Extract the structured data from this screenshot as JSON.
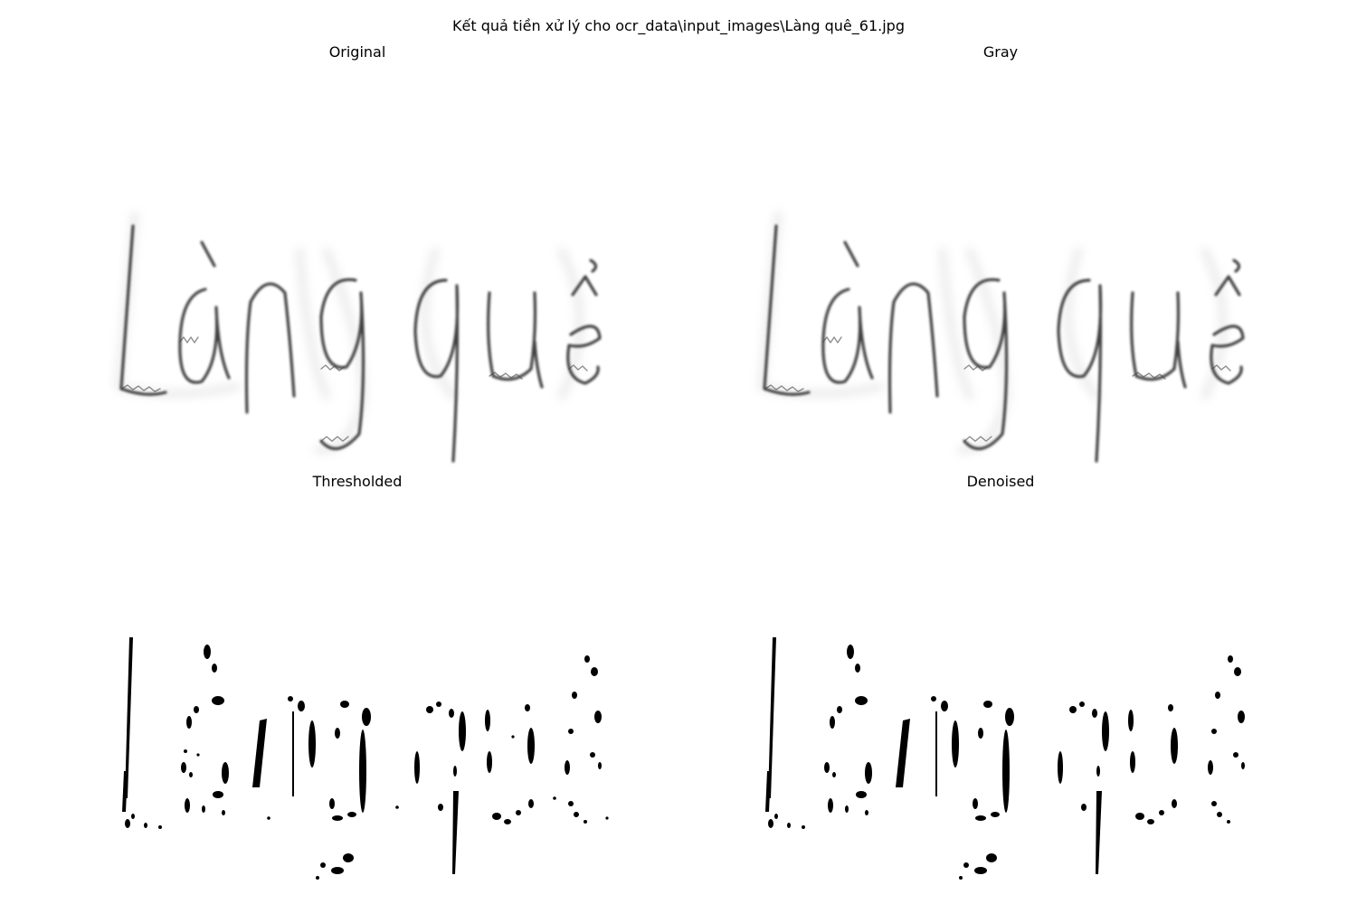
{
  "figure": {
    "title": "Kết quả tiền xử lý cho ocr_data\\input_images\\Làng quê_61.jpg"
  },
  "panels": {
    "original": {
      "title": "Original"
    },
    "gray": {
      "title": "Gray"
    },
    "thresholded": {
      "title": "Thresholded"
    },
    "denoised": {
      "title": "Denoised"
    }
  },
  "image_text": "Làng quê",
  "colors": {
    "background": "#ffffff",
    "ink_soft": "#2a2a2a",
    "ink_binary": "#000000"
  }
}
